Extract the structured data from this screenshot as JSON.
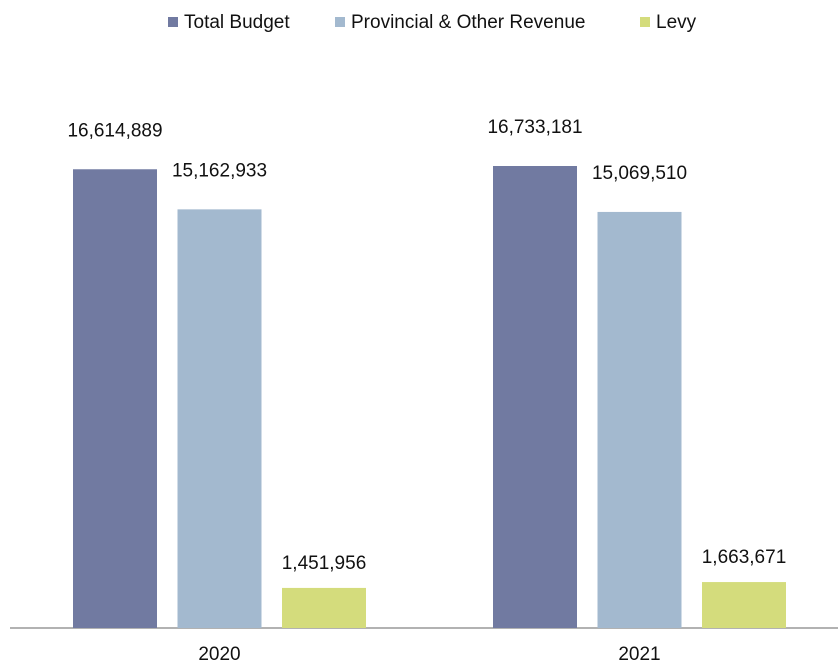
{
  "chart_data": {
    "type": "bar",
    "categories": [
      "2020",
      "2021"
    ],
    "series": [
      {
        "name": "Total Budget",
        "color": "#717aa1",
        "values": [
          16614889,
          16733181
        ],
        "value_labels": [
          "16,614,889",
          "16,733,181"
        ]
      },
      {
        "name": "Provincial & Other Revenue",
        "color": "#a3b9cf",
        "values": [
          15162933,
          15069510
        ],
        "value_labels": [
          "15,162,933",
          "15,069,510"
        ]
      },
      {
        "name": "Levy",
        "color": "#d4dc7c",
        "values": [
          1451956,
          1663671
        ],
        "value_labels": [
          "1,451,956",
          "1,663,671"
        ]
      }
    ],
    "legend": "top"
  }
}
